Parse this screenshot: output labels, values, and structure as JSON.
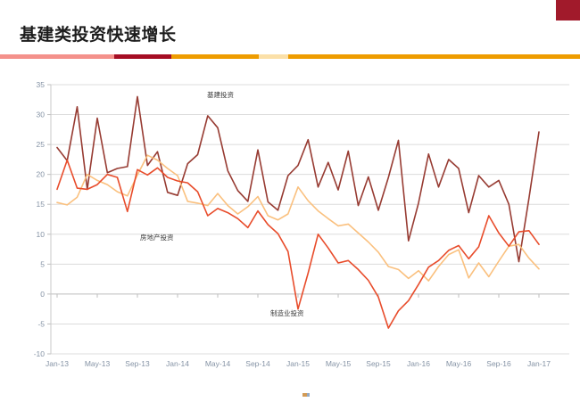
{
  "page": {
    "title": "基建类投资快速增长",
    "accent_colors": {
      "stripe_pink": "#F4918B",
      "stripe_dark_red": "#A50D23",
      "stripe_orange": "#EE9C00",
      "stripe_cream": "#FBE0A8",
      "corner_block": "#A11A2B"
    }
  },
  "chart_data": {
    "type": "line",
    "title": "",
    "xlabel": "",
    "ylabel": "",
    "ylim": [
      -10,
      35
    ],
    "y_ticks": [
      35,
      30,
      25,
      20,
      15,
      10,
      5,
      0,
      -5,
      -10
    ],
    "grid": "horizontal",
    "legend_position": "inline-annotations",
    "x": [
      "Jan-13",
      "Feb-13",
      "Mar-13",
      "Apr-13",
      "May-13",
      "Jun-13",
      "Jul-13",
      "Aug-13",
      "Sep-13",
      "Oct-13",
      "Nov-13",
      "Dec-13",
      "Jan-14",
      "Feb-14",
      "Mar-14",
      "Apr-14",
      "May-14",
      "Jun-14",
      "Jul-14",
      "Aug-14",
      "Sep-14",
      "Oct-14",
      "Nov-14",
      "Dec-14",
      "Jan-15",
      "Feb-15",
      "Mar-15",
      "Apr-15",
      "May-15",
      "Jun-15",
      "Jul-15",
      "Aug-15",
      "Sep-15",
      "Oct-15",
      "Nov-15",
      "Dec-15",
      "Jan-16",
      "Feb-16",
      "Mar-16",
      "Apr-16",
      "May-16",
      "Jun-16",
      "Jul-16",
      "Aug-16",
      "Sep-16",
      "Oct-16",
      "Nov-16",
      "Dec-16",
      "Jan-17"
    ],
    "x_tick_labels": [
      "Jan-13",
      "May-13",
      "Sep-13",
      "Jan-14",
      "May-14",
      "Sep-14",
      "Jan-15",
      "May-15",
      "Sep-15",
      "Jan-16",
      "May-16",
      "Sep-16",
      "Jan-17"
    ],
    "series": [
      {
        "name": "基建投资",
        "color": "#973B32",
        "values": [
          24.5,
          22.3,
          31.3,
          17.5,
          29.4,
          20.3,
          21.0,
          21.3,
          33.0,
          21.5,
          23.8,
          17.0,
          16.5,
          21.8,
          23.3,
          29.8,
          27.8,
          20.6,
          17.3,
          15.5,
          24.1,
          15.4,
          14.0,
          19.8,
          21.5,
          25.8,
          17.9,
          22.0,
          17.4,
          23.9,
          14.8,
          19.6,
          14.0,
          19.5,
          25.7,
          8.9,
          15.2,
          23.4,
          17.9,
          22.5,
          21.0,
          13.6,
          19.8,
          17.9,
          19.0,
          15.0,
          5.4,
          16.0,
          27.1
        ]
      },
      {
        "name": "房地产投资",
        "color": "#FAC07E",
        "values": [
          15.3,
          14.9,
          16.2,
          20.0,
          19.0,
          18.3,
          17.1,
          16.4,
          19.9,
          23.2,
          22.4,
          21.0,
          19.8,
          15.5,
          15.2,
          14.8,
          16.8,
          14.8,
          13.4,
          14.6,
          16.3,
          13.1,
          12.4,
          13.4,
          17.9,
          15.6,
          13.9,
          12.6,
          11.4,
          11.7,
          10.2,
          8.7,
          7.0,
          4.6,
          4.1,
          2.6,
          3.9,
          2.2,
          4.6,
          6.6,
          7.4,
          2.7,
          5.2,
          2.9,
          5.5,
          8.0,
          8.3,
          6.0,
          4.2
        ]
      },
      {
        "name": "制造业投资",
        "color": "#E84C2B",
        "values": [
          17.5,
          22.4,
          17.7,
          17.5,
          18.3,
          20.0,
          19.5,
          13.8,
          20.8,
          19.9,
          21.1,
          19.5,
          18.9,
          18.6,
          17.1,
          13.1,
          14.3,
          13.6,
          12.6,
          11.1,
          13.9,
          11.6,
          10.1,
          7.1,
          -2.5,
          3.5,
          10.0,
          7.7,
          5.2,
          5.6,
          4.1,
          2.3,
          -0.5,
          -5.7,
          -2.8,
          -1.1,
          1.6,
          4.5,
          5.6,
          7.3,
          8.1,
          5.9,
          7.9,
          13.1,
          10.2,
          8.0,
          10.4,
          10.6,
          8.3
        ]
      }
    ]
  }
}
